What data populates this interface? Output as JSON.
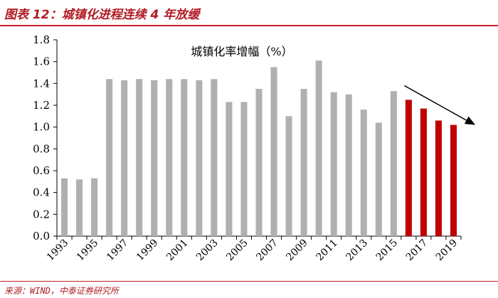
{
  "header": {
    "title": "图表 12：城镇化进程连续 4 年放缓"
  },
  "footer": {
    "source": "来源：WIND，中泰证券研究所"
  },
  "colors": {
    "accent": "#c21f27",
    "bar_gray": "#b0b0b0",
    "bar_red": "#c00000",
    "arrow": "#000000"
  },
  "chart_data": {
    "type": "bar",
    "title": "城镇化率增幅（%）",
    "x": [
      1993,
      1994,
      1995,
      1996,
      1997,
      1998,
      1999,
      2000,
      2001,
      2002,
      2003,
      2004,
      2005,
      2006,
      2007,
      2008,
      2009,
      2010,
      2011,
      2012,
      2013,
      2014,
      2015,
      2016,
      2017,
      2018,
      2019
    ],
    "values": [
      0.53,
      0.52,
      0.53,
      1.44,
      1.43,
      1.44,
      1.43,
      1.44,
      1.44,
      1.43,
      1.44,
      1.23,
      1.23,
      1.35,
      1.55,
      1.1,
      1.35,
      1.61,
      1.32,
      1.3,
      1.16,
      1.04,
      1.33,
      1.25,
      1.17,
      1.06,
      1.02
    ],
    "highlight_from": 2016,
    "x_tick_labels": [
      "1993",
      "1995",
      "1997",
      "1999",
      "2001",
      "2003",
      "2005",
      "2007",
      "2009",
      "2011",
      "2013",
      "2015",
      "2017",
      "2019"
    ],
    "y_tick_labels": [
      "0.0",
      "0.2",
      "0.4",
      "0.6",
      "0.8",
      "1.0",
      "1.2",
      "1.4",
      "1.6",
      "1.8"
    ],
    "ylim": [
      0,
      1.8
    ],
    "xlabel": "",
    "ylabel": "",
    "grid": false,
    "annotation": "downward trend arrow over 2016-2019"
  }
}
